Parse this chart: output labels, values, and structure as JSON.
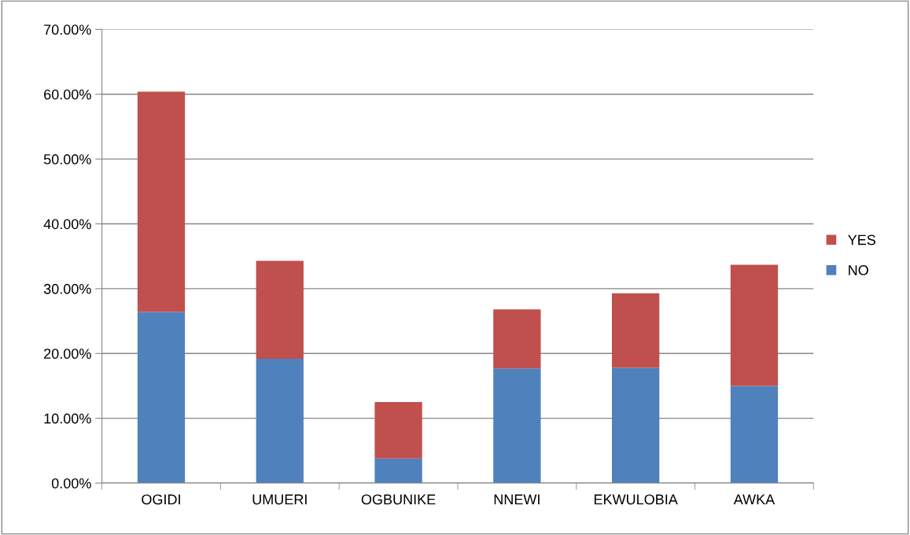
{
  "chart_data": {
    "type": "bar",
    "stacked": true,
    "categories": [
      "OGIDI",
      "UMUERI",
      "OGBUNIKE",
      "NNEWI",
      "EKWULOBIA",
      "AWKA"
    ],
    "series": [
      {
        "name": "NO",
        "color": "#4f81bd",
        "values": [
          26.4,
          19.2,
          3.8,
          17.7,
          17.8,
          15.0
        ]
      },
      {
        "name": "YES",
        "color": "#c0504d",
        "values": [
          34.0,
          15.1,
          8.7,
          9.1,
          11.5,
          18.7
        ]
      }
    ],
    "ylim": [
      0,
      70
    ],
    "yticks": [
      {
        "value": 0,
        "label": "0.00%"
      },
      {
        "value": 10,
        "label": "10.00%"
      },
      {
        "value": 20,
        "label": "20.00%"
      },
      {
        "value": 30,
        "label": "30.00%"
      },
      {
        "value": 40,
        "label": "40.00%"
      },
      {
        "value": 50,
        "label": "50.00%"
      },
      {
        "value": 60,
        "label": "60.00%"
      },
      {
        "value": 70,
        "label": "70.00%"
      }
    ],
    "grid": "y",
    "legend": "right"
  }
}
